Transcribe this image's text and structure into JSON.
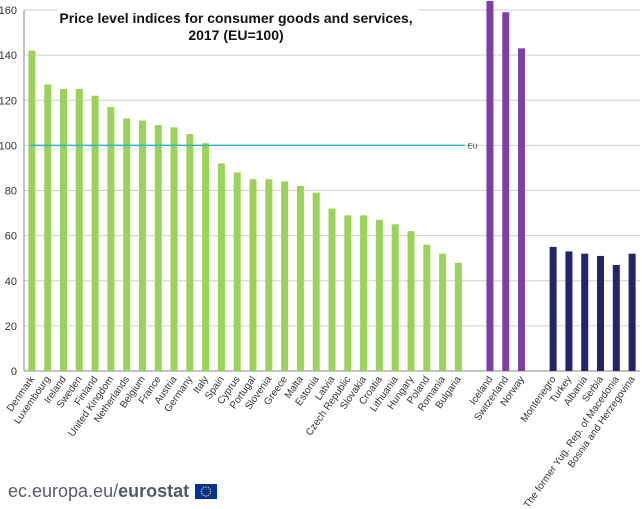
{
  "chart_data": {
    "type": "bar",
    "title_lines": [
      "Price level indices for consumer goods and services,",
      "2017 (EU=100)"
    ],
    "ylim": [
      0,
      160
    ],
    "y_ticks": [
      0,
      20,
      40,
      60,
      80,
      100,
      120,
      140,
      160
    ],
    "reference_line": {
      "value": 100,
      "label": "EU",
      "color": "#29b6c8"
    },
    "groups": [
      {
        "color": "#9bd35a",
        "categories": [
          "Denmark",
          "Luxembourg",
          "Ireland",
          "Sweden",
          "Finland",
          "United Kingdom",
          "Netherlands",
          "Belgium",
          "France",
          "Austria",
          "Germany",
          "Italy",
          "Spain",
          "Cyprus",
          "Portugal",
          "Slovenia",
          "Greece",
          "Malta",
          "Estonia",
          "Latvia",
          "Czech Republic",
          "Slovakia",
          "Croatia",
          "Lithuania",
          "Hungary",
          "Poland",
          "Romania",
          "Bulgaria"
        ],
        "values": [
          142,
          127,
          125,
          125,
          122,
          117,
          112,
          111,
          109,
          108,
          105,
          101,
          92,
          88,
          85,
          85,
          84,
          82,
          79,
          72,
          69,
          69,
          67,
          65,
          62,
          56,
          52,
          48
        ]
      },
      {
        "color": "#7b3fa6",
        "categories": [
          "Iceland",
          "Switzerland",
          "Norway"
        ],
        "values": [
          164,
          159,
          143
        ]
      },
      {
        "color": "#24246b",
        "categories": [
          "Montenegro",
          "Turkey",
          "Albania",
          "Serbia",
          "The former Yug. Rep. of Macedonia",
          "Bosnia and Herzegovina"
        ],
        "values": [
          55,
          53,
          52,
          51,
          47,
          52
        ]
      }
    ]
  },
  "footer": {
    "domain": "ec.europa.eu/",
    "brand": "eurostat"
  },
  "colors": {
    "axis_text": "#333333",
    "grid": "#d0d0d0",
    "flag_blue": "#003399",
    "flag_star": "#ffcc00"
  }
}
